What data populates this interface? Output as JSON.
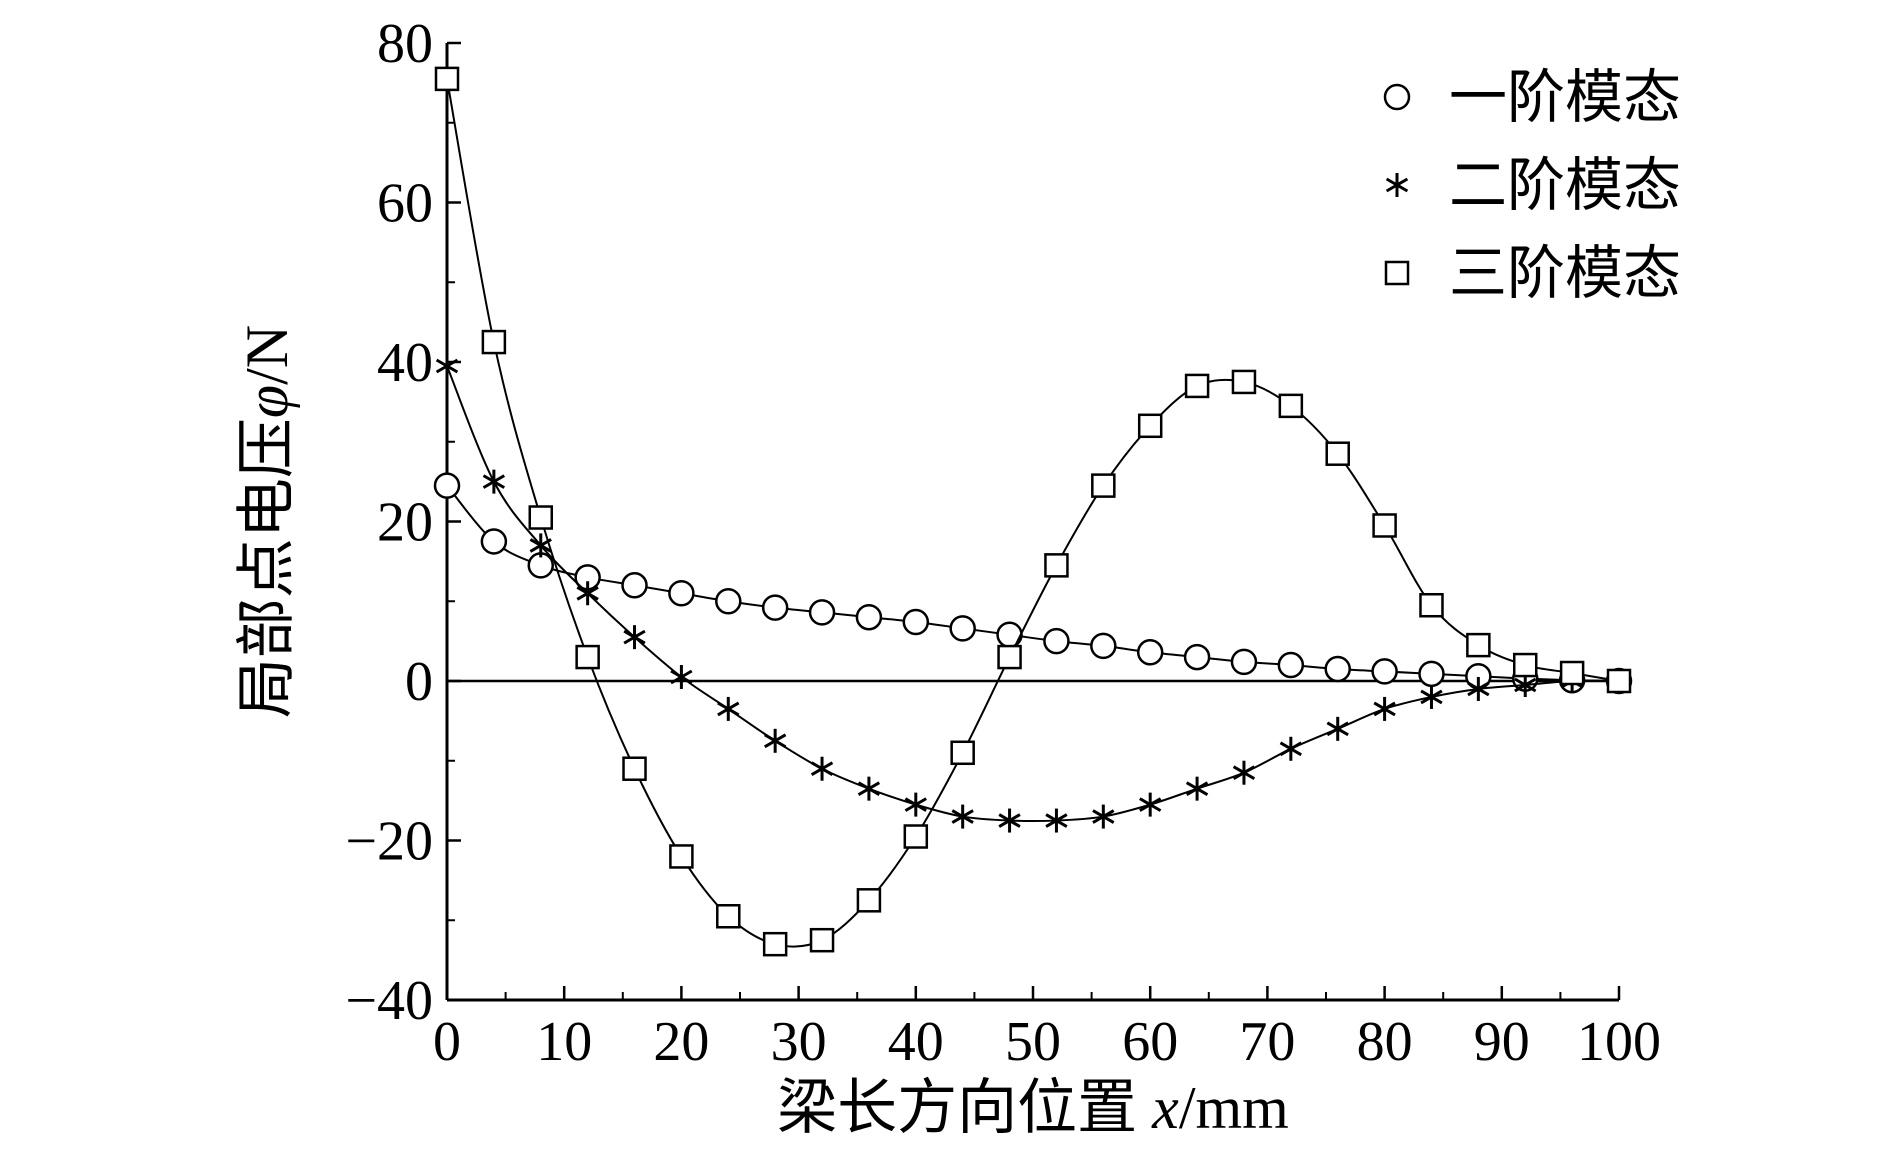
{
  "chart_data": {
    "type": "line",
    "title": "",
    "xlabel": "梁长方向位置 x/mm",
    "xlabel_parts": {
      "text": "梁长方向位置 ",
      "var": "x",
      "unit": "/mm"
    },
    "ylabel": "局部点电压φ/N",
    "ylabel_parts": {
      "text": "局部点电压",
      "var": "φ",
      "unit": "/N"
    },
    "xlim": [
      0,
      100
    ],
    "ylim": [
      -40,
      80
    ],
    "xticks": [
      0,
      10,
      20,
      30,
      40,
      50,
      60,
      70,
      80,
      90,
      100
    ],
    "yticks": [
      -40,
      -20,
      0,
      20,
      40,
      60,
      80
    ],
    "ytick_labels": [
      "−40",
      "−20",
      "0",
      "20",
      "40",
      "60",
      "80"
    ],
    "legend_position": "top-right",
    "x": [
      0,
      4,
      8,
      12,
      16,
      20,
      24,
      28,
      32,
      36,
      40,
      44,
      48,
      52,
      56,
      60,
      64,
      68,
      72,
      76,
      80,
      84,
      88,
      92,
      96,
      100
    ],
    "series": [
      {
        "name": "一阶模态",
        "marker": "circle",
        "values": [
          24.5,
          17.5,
          14.5,
          13,
          12,
          11,
          10,
          9.2,
          8.6,
          8,
          7.4,
          6.6,
          5.8,
          5,
          4.4,
          3.6,
          3,
          2.4,
          2,
          1.5,
          1.2,
          0.9,
          0.6,
          0.3,
          0.1,
          0
        ]
      },
      {
        "name": "二阶模态",
        "marker": "asterisk",
        "values": [
          39.5,
          25,
          17,
          11,
          5.5,
          0.5,
          -3.5,
          -7.5,
          -11,
          -13.5,
          -15.5,
          -17,
          -17.5,
          -17.5,
          -17,
          -15.5,
          -13.5,
          -11.5,
          -8.5,
          -6,
          -3.5,
          -2,
          -1,
          -0.5,
          0,
          0
        ]
      },
      {
        "name": "三阶模态",
        "marker": "square",
        "values": [
          75.5,
          42.5,
          20.5,
          3,
          -11,
          -22,
          -29.5,
          -33,
          -32.5,
          -27.5,
          -19.5,
          -9,
          3,
          14.5,
          24.5,
          32,
          37,
          37.5,
          34.5,
          28.5,
          19.5,
          9.5,
          4.5,
          2,
          1,
          0
        ]
      }
    ]
  }
}
